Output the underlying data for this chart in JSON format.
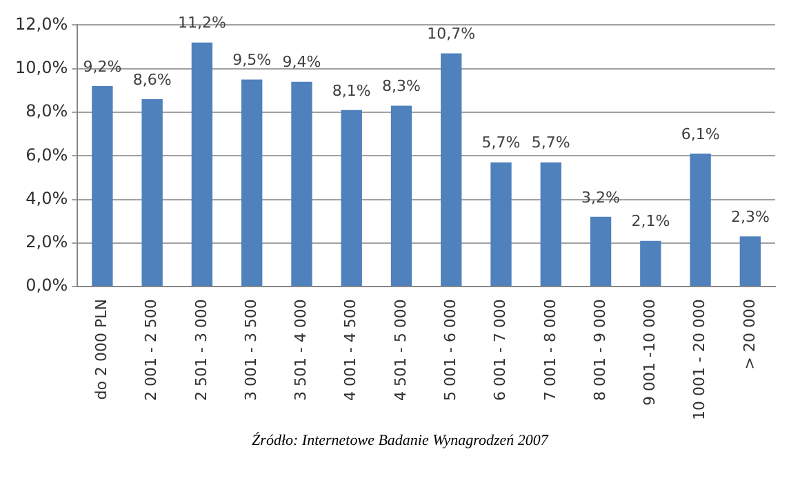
{
  "chart_data": {
    "type": "bar",
    "categories": [
      "do 2 000 PLN",
      "2 001 - 2 500",
      "2 501 - 3 000",
      "3 001 - 3 500",
      "3 501 - 4 000",
      "4 001 - 4 500",
      "4 501 - 5 000",
      "5 001 - 6 000",
      "6 001 - 7 000",
      "7 001 - 8 000",
      "8 001 - 9 000",
      "9 001 -10 000",
      "10 001 - 20 000",
      "> 20 000"
    ],
    "values": [
      9.2,
      8.6,
      11.2,
      9.5,
      9.4,
      8.1,
      8.3,
      10.7,
      5.7,
      5.7,
      3.2,
      2.1,
      6.1,
      2.3
    ],
    "value_labels": [
      "9,2%",
      "8,6%",
      "11,2%",
      "9,5%",
      "9,4%",
      "8,1%",
      "8,3%",
      "10,7%",
      "5,7%",
      "5,7%",
      "3,2%",
      "2,1%",
      "6,1%",
      "2,3%"
    ],
    "color": "#4f81bd",
    "ylim": [
      0,
      12
    ],
    "yticks": [
      {
        "value": 0,
        "label": "0,0%"
      },
      {
        "value": 2,
        "label": "2,0%"
      },
      {
        "value": 4,
        "label": "4,0%"
      },
      {
        "value": 6,
        "label": "6,0%"
      },
      {
        "value": 8,
        "label": "8,0%"
      },
      {
        "value": 10,
        "label": "10,0%"
      },
      {
        "value": 12,
        "label": "12,0%"
      }
    ],
    "grid": "y",
    "annotations": [
      "Źródło: Internetowe Badanie Wynagrodzeń 2007"
    ]
  }
}
